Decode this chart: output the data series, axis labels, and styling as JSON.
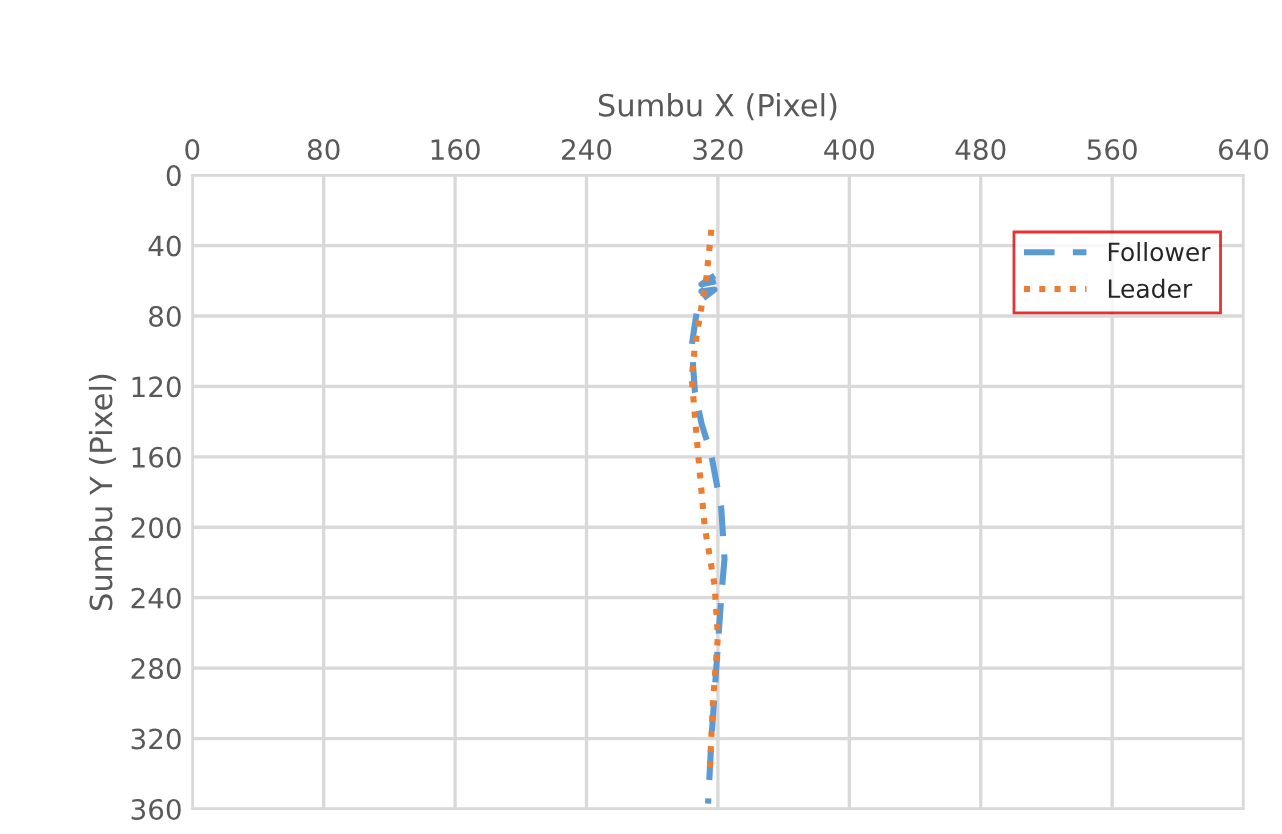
{
  "chart_data": {
    "type": "line",
    "xlabel": "Sumbu X (Pixel)",
    "ylabel": "Sumbu Y (Pixel)",
    "xlim": [
      0,
      640
    ],
    "xticks": [
      0,
      80,
      160,
      240,
      320,
      400,
      480,
      560,
      640
    ],
    "ylim": [
      360,
      0
    ],
    "yticks": [
      0,
      40,
      80,
      120,
      160,
      200,
      240,
      280,
      320,
      360
    ],
    "grid": true,
    "legend": "top right",
    "marker": "none",
    "series": [
      {
        "name": "Follower",
        "color": "#5b9bd5",
        "line_style": "dashed",
        "x": [
          318,
          310,
          320,
          310,
          318,
          308,
          304,
          306,
          310,
          316,
          322,
          324,
          322,
          319,
          316,
          314
        ],
        "values": [
          57,
          62,
          60,
          66,
          65,
          72,
          97,
          123,
          141,
          159,
          189,
          218,
          240,
          280,
          321,
          357
        ]
      },
      {
        "name": "Leader",
        "color": "#ed7d31",
        "line_style": "dotted",
        "x": [
          316,
          313,
          306,
          304,
          308,
          312,
          318,
          320,
          317,
          315
        ],
        "values": [
          31,
          58,
          97,
          115,
          159,
          200,
          233,
          262,
          299,
          339
        ]
      }
    ]
  }
}
